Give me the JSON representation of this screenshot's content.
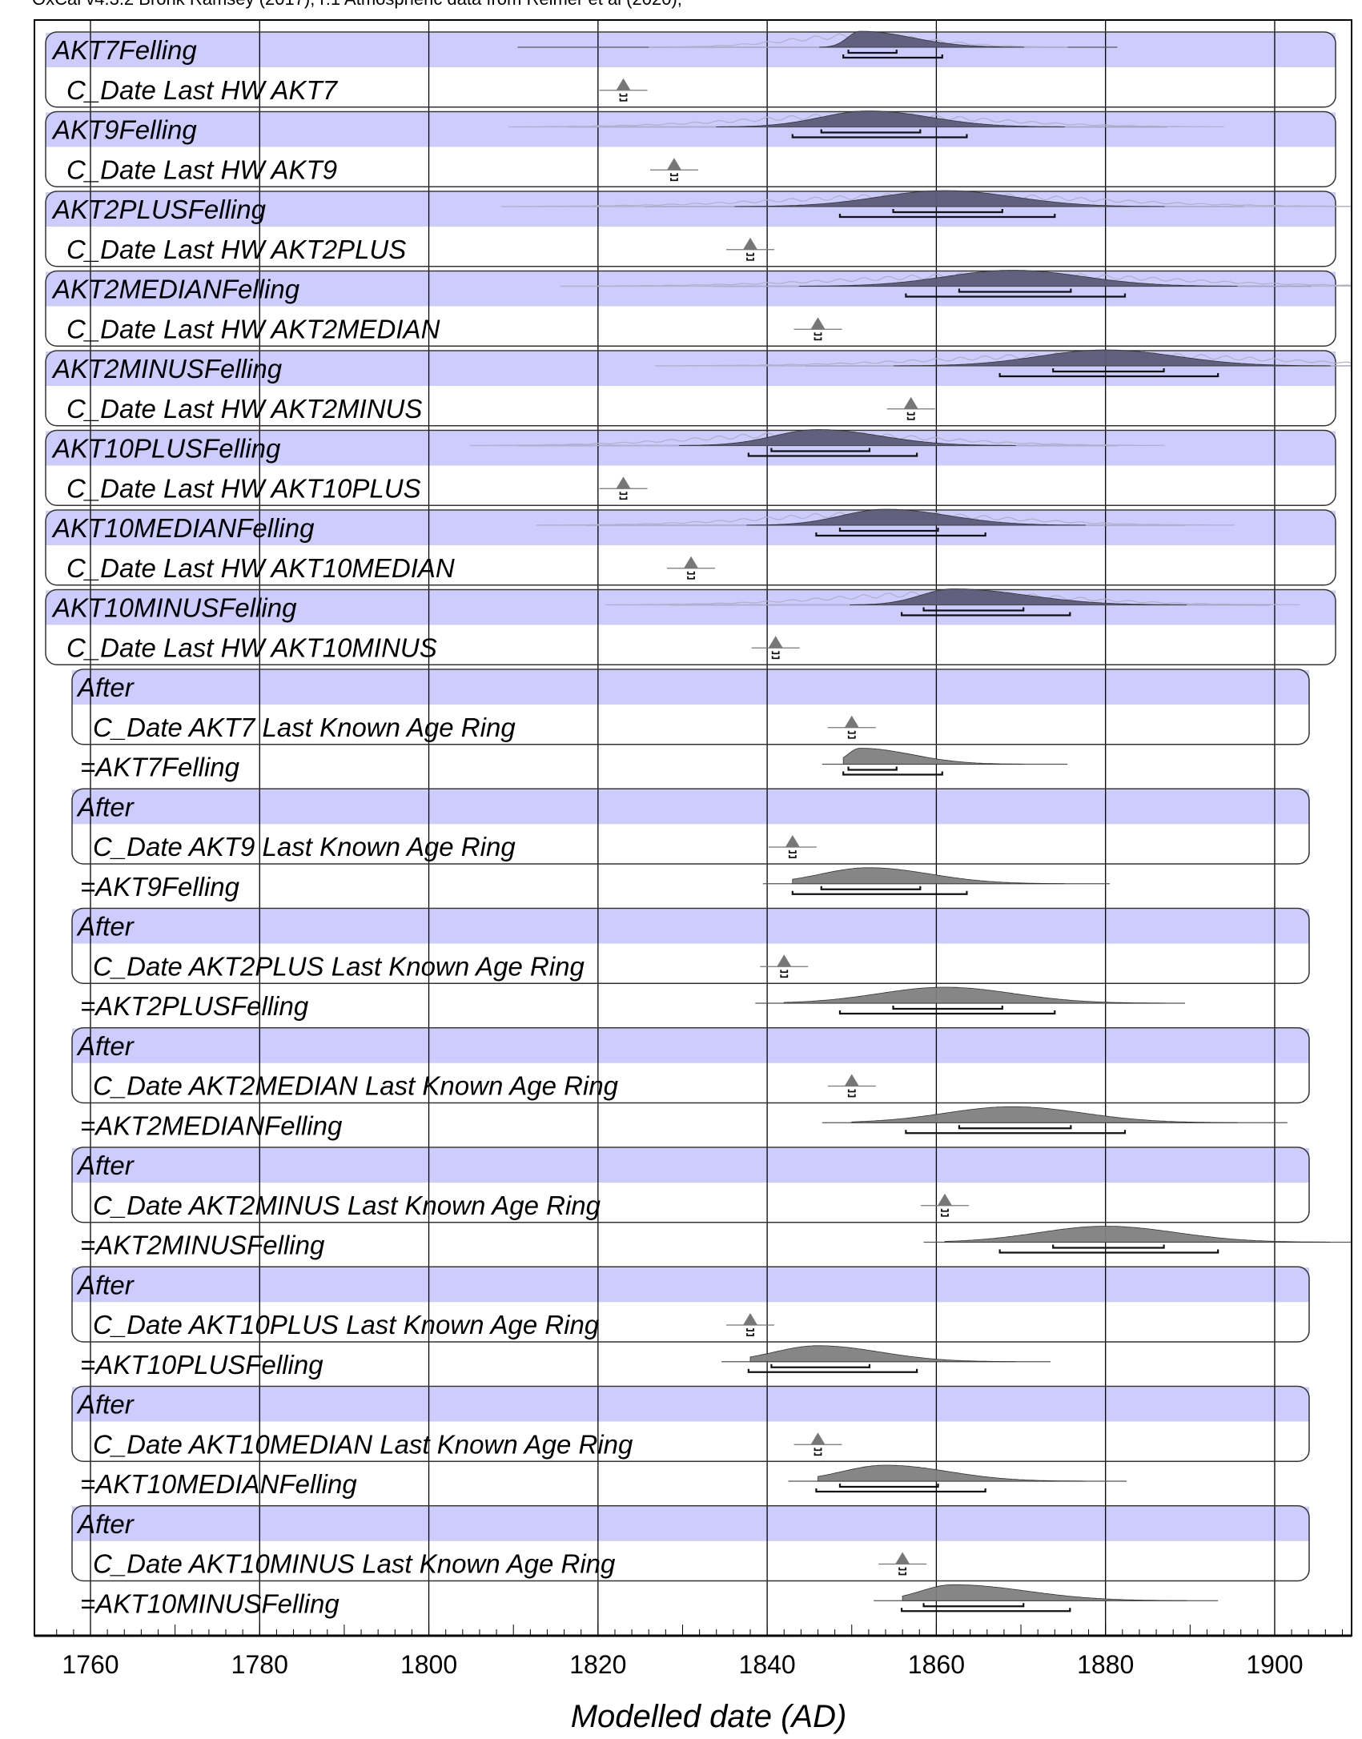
{
  "header": "OxCal v4.3.2 Bronk Ramsey (2017); r:1 Atmospheric data from Reimer et al (2020);",
  "colors": {
    "band": "#ccccff",
    "posterior_fill": "#5b5b78",
    "after_fill": "#808080",
    "likelihood": "#b0b0c8"
  },
  "chart_data": {
    "type": "range-plot",
    "xlabel": "Modelled date (AD)",
    "xlim": [
      1755,
      1912
    ],
    "xticks": [
      1760,
      1780,
      1800,
      1820,
      1840,
      1860,
      1880,
      1900
    ],
    "grid": true,
    "groups": [
      {
        "felling": {
          "label": "AKT7Felling",
          "range": [
            1810.5,
            1881.4
          ],
          "peak": 1851,
          "r68": [
            1849.6,
            1855.3
          ],
          "r95": [
            1849,
            1860.7
          ]
        },
        "cdate": {
          "label": "C_Date Last HW AKT7",
          "value": 1823
        }
      },
      {
        "felling": {
          "label": "AKT9Felling",
          "range": [
            1816.5,
            1887.3
          ],
          "peak": 1852,
          "r68": [
            1846.4,
            1858.1
          ],
          "r95": [
            1843,
            1863.6
          ]
        },
        "cdate": {
          "label": "C_Date Last HW AKT9",
          "value": 1829
        }
      },
      {
        "felling": {
          "label": "AKT2PLUSFelling",
          "range": [
            1825.5,
            1896.3
          ],
          "peak": 1861,
          "r68": [
            1854.9,
            1867.8
          ],
          "r95": [
            1848.6,
            1874
          ]
        },
        "cdate": {
          "label": "C_Date Last HW AKT2PLUS",
          "value": 1838
        }
      },
      {
        "felling": {
          "label": "AKT2MEDIANFelling",
          "range": [
            1833.5,
            1904.3
          ],
          "peak": 1869,
          "r68": [
            1862.7,
            1875.9
          ],
          "r95": [
            1856.4,
            1882.3
          ]
        },
        "cdate": {
          "label": "C_Date Last HW AKT2MEDIAN",
          "value": 1846
        }
      },
      {
        "felling": {
          "label": "AKT2MINUSFelling",
          "range": [
            1844.5,
            1912
          ],
          "peak": 1880,
          "r68": [
            1873.8,
            1886.9
          ],
          "r95": [
            1867.5,
            1893.3
          ]
        },
        "cdate": {
          "label": "C_Date Last HW AKT2MINUS",
          "value": 1857
        }
      },
      {
        "felling": {
          "label": "AKT10PLUSFelling",
          "range": [
            1810.5,
            1881.4
          ],
          "peak": 1846,
          "r68": [
            1840.5,
            1852.1
          ],
          "r95": [
            1837.8,
            1857.7
          ]
        },
        "cdate": {
          "label": "C_Date Last HW AKT10PLUS",
          "value": 1823
        }
      },
      {
        "felling": {
          "label": "AKT10MEDIANFelling",
          "range": [
            1818.5,
            1889.4
          ],
          "peak": 1854,
          "r68": [
            1848.6,
            1860.2
          ],
          "r95": [
            1845.8,
            1865.8
          ]
        },
        "cdate": {
          "label": "C_Date Last HW AKT10MEDIAN",
          "value": 1831
        }
      },
      {
        "felling": {
          "label": "AKT10MINUSFelling",
          "range": [
            1828.4,
            1899.5
          ],
          "peak": 1862,
          "r68": [
            1858.5,
            1870.3
          ],
          "r95": [
            1855.9,
            1875.8
          ]
        },
        "cdate": {
          "label": "C_Date Last HW AKT10MINUS",
          "value": 1841
        }
      }
    ],
    "after_groups": [
      {
        "label": "After",
        "cdate": {
          "label": "C_Date AKT7 Last Known Age Ring",
          "value": 1850
        },
        "felling": {
          "label": "=AKT7Felling",
          "range": [
            1846.5,
            1875.5
          ],
          "start": 1849,
          "peak": 1851,
          "r68": [
            1849.6,
            1855.3
          ],
          "r95": [
            1849,
            1860.7
          ]
        }
      },
      {
        "label": "After",
        "cdate": {
          "label": "C_Date AKT9 Last Known Age Ring",
          "value": 1843
        },
        "felling": {
          "label": "=AKT9Felling",
          "range": [
            1839.5,
            1880.5
          ],
          "start": 1843,
          "peak": 1852,
          "r68": [
            1846.4,
            1858.1
          ],
          "r95": [
            1843,
            1863.6
          ]
        }
      },
      {
        "label": "After",
        "cdate": {
          "label": "C_Date AKT2PLUS Last Known Age Ring",
          "value": 1842
        },
        "felling": {
          "label": "=AKT2PLUSFelling",
          "range": [
            1838.6,
            1889.4
          ],
          "start": 1842,
          "peak": 1861,
          "r68": [
            1854.9,
            1867.8
          ],
          "r95": [
            1848.6,
            1874
          ]
        }
      },
      {
        "label": "After",
        "cdate": {
          "label": "C_Date AKT2MEDIAN Last Known Age Ring",
          "value": 1850
        },
        "felling": {
          "label": "=AKT2MEDIANFelling",
          "range": [
            1846.5,
            1901.5
          ],
          "start": 1850,
          "peak": 1869,
          "r68": [
            1862.7,
            1875.9
          ],
          "r95": [
            1856.4,
            1882.3
          ]
        }
      },
      {
        "label": "After",
        "cdate": {
          "label": "C_Date AKT2MINUS Last Known Age Ring",
          "value": 1861
        },
        "felling": {
          "label": "=AKT2MINUSFelling",
          "range": [
            1858.5,
            1912
          ],
          "start": 1861,
          "peak": 1880,
          "r68": [
            1873.8,
            1886.9
          ],
          "r95": [
            1867.5,
            1893.3
          ]
        }
      },
      {
        "label": "After",
        "cdate": {
          "label": "C_Date AKT10PLUS Last Known Age Ring",
          "value": 1838
        },
        "felling": {
          "label": "=AKT10PLUSFelling",
          "range": [
            1834.6,
            1873.5
          ],
          "start": 1838,
          "peak": 1846,
          "r68": [
            1840.5,
            1852.1
          ],
          "r95": [
            1837.8,
            1857.7
          ]
        }
      },
      {
        "label": "After",
        "cdate": {
          "label": "C_Date AKT10MEDIAN Last Known Age Ring",
          "value": 1846
        },
        "felling": {
          "label": "=AKT10MEDIANFelling",
          "range": [
            1842.5,
            1882.5
          ],
          "start": 1846,
          "peak": 1854,
          "r68": [
            1848.6,
            1860.2
          ],
          "r95": [
            1845.8,
            1865.8
          ]
        }
      },
      {
        "label": "After",
        "cdate": {
          "label": "C_Date AKT10MINUS Last Known Age Ring",
          "value": 1856
        },
        "felling": {
          "label": "=AKT10MINUSFelling",
          "range": [
            1852.6,
            1893.3
          ],
          "start": 1856,
          "peak": 1862,
          "r68": [
            1858.5,
            1870.3
          ],
          "r95": [
            1855.9,
            1875.8
          ]
        }
      }
    ]
  }
}
